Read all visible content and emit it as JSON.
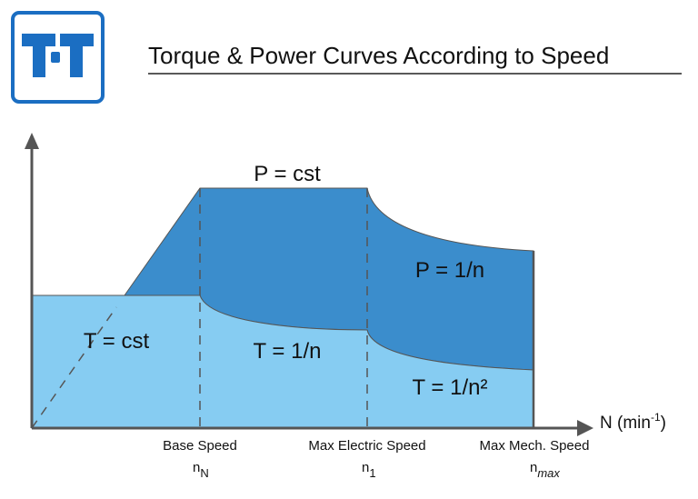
{
  "logo": {
    "text": "T-T",
    "color": "#1b6ec2"
  },
  "title": "Torque & Power Curves According to Speed",
  "colors": {
    "power": "#3b8dcc",
    "torque": "#86ccf2",
    "axis": "#555555"
  },
  "axis": {
    "x_label": "N (min",
    "x_label_sup": "-1",
    "x_label_end": ")"
  },
  "regions": {
    "power_const": "P = cst",
    "power_inv": "P = 1/n",
    "torque_const": "T = cst",
    "torque_inv": "T = 1/n",
    "torque_inv2": "T = 1/n²"
  },
  "speeds": [
    {
      "name": "Base Speed",
      "symbol": "n",
      "sub": "N"
    },
    {
      "name": "Max Electric Speed",
      "symbol": "n",
      "sub": "1"
    },
    {
      "name": "Max Mech. Speed",
      "symbol": "n",
      "sub": "max"
    }
  ]
}
